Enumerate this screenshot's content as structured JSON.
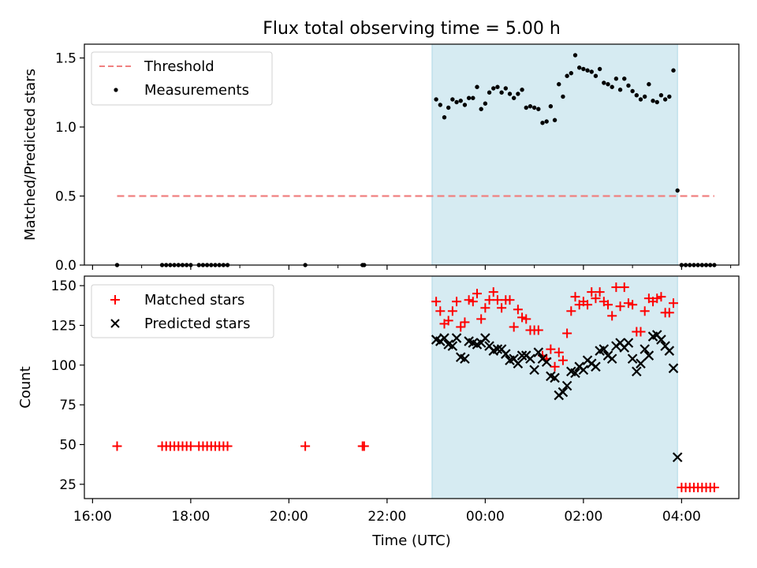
{
  "title": "Flux total observing time = 5.00 h",
  "colors": {
    "threshold": "#f08080",
    "measurements": "#000000",
    "matched": "#ff0000",
    "predicted": "#000000",
    "shade": "#add8e6"
  },
  "chart_data": [
    {
      "type": "scatter",
      "panel": "top",
      "ylabel": "Matched/Predicted stars",
      "xlabel": "",
      "xlim": [
        "15:50",
        "05:10"
      ],
      "ylim": [
        0,
        1.6
      ],
      "yticks": [
        0.0,
        0.5,
        1.0,
        1.5
      ],
      "ytick_labels": [
        "0.0",
        "0.5",
        "1.0",
        "1.5"
      ],
      "xticks": [
        "16:00",
        "18:00",
        "20:00",
        "22:00",
        "00:00",
        "02:00",
        "04:00"
      ],
      "shaded_span": [
        "22:55",
        "03:55"
      ],
      "legend": {
        "position": "top-left",
        "entries": [
          "Threshold",
          "Measurements"
        ]
      },
      "series": [
        {
          "name": "Threshold",
          "style": "dashed-line",
          "points": [
            [
              "16:30",
              0.5
            ],
            [
              "04:40",
              0.5
            ]
          ]
        },
        {
          "name": "Measurements",
          "style": "dot",
          "points": [
            [
              "16:30",
              0
            ],
            [
              "17:25",
              0
            ],
            [
              "17:30",
              0
            ],
            [
              "17:35",
              0
            ],
            [
              "17:40",
              0
            ],
            [
              "17:45",
              0
            ],
            [
              "17:50",
              0
            ],
            [
              "17:55",
              0
            ],
            [
              "18:00",
              0
            ],
            [
              "18:10",
              0
            ],
            [
              "18:15",
              0
            ],
            [
              "18:20",
              0
            ],
            [
              "18:25",
              0
            ],
            [
              "18:30",
              0
            ],
            [
              "18:35",
              0
            ],
            [
              "18:40",
              0
            ],
            [
              "18:45",
              0
            ],
            [
              "20:20",
              0
            ],
            [
              "21:30",
              0
            ],
            [
              "21:32",
              0
            ],
            [
              "23:00",
              1.2
            ],
            [
              "23:05",
              1.16
            ],
            [
              "23:10",
              1.07
            ],
            [
              "23:15",
              1.14
            ],
            [
              "23:20",
              1.2
            ],
            [
              "23:25",
              1.18
            ],
            [
              "23:30",
              1.19
            ],
            [
              "23:35",
              1.16
            ],
            [
              "23:40",
              1.21
            ],
            [
              "23:45",
              1.21
            ],
            [
              "23:50",
              1.29
            ],
            [
              "23:55",
              1.13
            ],
            [
              "00:00",
              1.17
            ],
            [
              "00:05",
              1.25
            ],
            [
              "00:10",
              1.28
            ],
            [
              "00:15",
              1.29
            ],
            [
              "00:20",
              1.25
            ],
            [
              "00:25",
              1.28
            ],
            [
              "00:30",
              1.24
            ],
            [
              "00:35",
              1.21
            ],
            [
              "00:40",
              1.24
            ],
            [
              "00:45",
              1.27
            ],
            [
              "00:50",
              1.14
            ],
            [
              "00:55",
              1.15
            ],
            [
              "01:00",
              1.14
            ],
            [
              "01:05",
              1.13
            ],
            [
              "01:10",
              1.03
            ],
            [
              "01:15",
              1.04
            ],
            [
              "01:20",
              1.15
            ],
            [
              "01:25",
              1.05
            ],
            [
              "01:30",
              1.31
            ],
            [
              "01:35",
              1.22
            ],
            [
              "01:40",
              1.37
            ],
            [
              "01:45",
              1.39
            ],
            [
              "01:50",
              1.52
            ],
            [
              "01:55",
              1.43
            ],
            [
              "02:00",
              1.42
            ],
            [
              "02:05",
              1.41
            ],
            [
              "02:10",
              1.4
            ],
            [
              "02:15",
              1.37
            ],
            [
              "02:20",
              1.42
            ],
            [
              "02:25",
              1.32
            ],
            [
              "02:30",
              1.31
            ],
            [
              "02:35",
              1.29
            ],
            [
              "02:40",
              1.35
            ],
            [
              "02:45",
              1.27
            ],
            [
              "02:50",
              1.35
            ],
            [
              "02:55",
              1.3
            ],
            [
              "03:00",
              1.26
            ],
            [
              "03:05",
              1.23
            ],
            [
              "03:10",
              1.2
            ],
            [
              "03:15",
              1.22
            ],
            [
              "03:20",
              1.31
            ],
            [
              "03:25",
              1.19
            ],
            [
              "03:30",
              1.18
            ],
            [
              "03:35",
              1.23
            ],
            [
              "03:40",
              1.2
            ],
            [
              "03:45",
              1.22
            ],
            [
              "03:50",
              1.41
            ],
            [
              "03:55",
              0.54
            ],
            [
              "04:00",
              0
            ],
            [
              "04:05",
              0
            ],
            [
              "04:10",
              0
            ],
            [
              "04:15",
              0
            ],
            [
              "04:20",
              0
            ],
            [
              "04:25",
              0
            ],
            [
              "04:30",
              0
            ],
            [
              "04:35",
              0
            ],
            [
              "04:40",
              0
            ]
          ]
        }
      ]
    },
    {
      "type": "scatter",
      "panel": "bottom",
      "ylabel": "Count",
      "xlabel": "Time (UTC)",
      "xlim": [
        "15:50",
        "05:10"
      ],
      "ylim": [
        16,
        156
      ],
      "yticks": [
        25,
        50,
        75,
        100,
        125,
        150
      ],
      "ytick_labels": [
        "25",
        "50",
        "75",
        "100",
        "125",
        "150"
      ],
      "xticks": [
        "16:00",
        "18:00",
        "20:00",
        "22:00",
        "00:00",
        "02:00",
        "04:00"
      ],
      "shaded_span": [
        "22:55",
        "03:55"
      ],
      "legend": {
        "position": "top-left",
        "entries": [
          "Matched stars",
          "Predicted stars"
        ]
      },
      "series": [
        {
          "name": "Matched stars",
          "marker": "plus",
          "points": [
            [
              "16:30",
              49
            ],
            [
              "17:25",
              49
            ],
            [
              "17:30",
              49
            ],
            [
              "17:35",
              49
            ],
            [
              "17:40",
              49
            ],
            [
              "17:45",
              49
            ],
            [
              "17:50",
              49
            ],
            [
              "17:55",
              49
            ],
            [
              "18:00",
              49
            ],
            [
              "18:10",
              49
            ],
            [
              "18:15",
              49
            ],
            [
              "18:20",
              49
            ],
            [
              "18:25",
              49
            ],
            [
              "18:30",
              49
            ],
            [
              "18:35",
              49
            ],
            [
              "18:40",
              49
            ],
            [
              "18:45",
              49
            ],
            [
              "20:20",
              49
            ],
            [
              "21:30",
              49
            ],
            [
              "21:32",
              49
            ],
            [
              "23:00",
              140
            ],
            [
              "23:05",
              134
            ],
            [
              "23:10",
              126
            ],
            [
              "23:15",
              128
            ],
            [
              "23:20",
              134
            ],
            [
              "23:25",
              140
            ],
            [
              "23:30",
              124
            ],
            [
              "23:35",
              127
            ],
            [
              "23:40",
              141
            ],
            [
              "23:45",
              140
            ],
            [
              "23:50",
              145
            ],
            [
              "23:55",
              129
            ],
            [
              "00:00",
              136
            ],
            [
              "00:05",
              141
            ],
            [
              "00:10",
              146
            ],
            [
              "00:15",
              141
            ],
            [
              "00:20",
              136
            ],
            [
              "00:25",
              141
            ],
            [
              "00:30",
              141
            ],
            [
              "00:35",
              124
            ],
            [
              "00:40",
              135
            ],
            [
              "00:45",
              130
            ],
            [
              "00:50",
              129
            ],
            [
              "00:55",
              122
            ],
            [
              "01:00",
              122
            ],
            [
              "01:05",
              122
            ],
            [
              "01:10",
              106
            ],
            [
              "01:15",
              104
            ],
            [
              "01:20",
              110
            ],
            [
              "01:25",
              99
            ],
            [
              "01:30",
              108
            ],
            [
              "01:35",
              103
            ],
            [
              "01:40",
              120
            ],
            [
              "01:45",
              134
            ],
            [
              "01:50",
              143
            ],
            [
              "01:55",
              138
            ],
            [
              "02:00",
              140
            ],
            [
              "02:05",
              138
            ],
            [
              "02:10",
              146
            ],
            [
              "02:15",
              142
            ],
            [
              "02:20",
              146
            ],
            [
              "02:25",
              140
            ],
            [
              "02:30",
              138
            ],
            [
              "02:35",
              131
            ],
            [
              "02:40",
              149
            ],
            [
              "02:45",
              137
            ],
            [
              "02:50",
              149
            ],
            [
              "02:55",
              139
            ],
            [
              "03:00",
              138
            ],
            [
              "03:05",
              121
            ],
            [
              "03:10",
              121
            ],
            [
              "03:15",
              134
            ],
            [
              "03:20",
              142
            ],
            [
              "03:25",
              140
            ],
            [
              "03:30",
              142
            ],
            [
              "03:35",
              143
            ],
            [
              "03:40",
              133
            ],
            [
              "03:45",
              133
            ],
            [
              "03:50",
              139
            ],
            [
              "04:00",
              23
            ],
            [
              "04:05",
              23
            ],
            [
              "04:10",
              23
            ],
            [
              "04:15",
              23
            ],
            [
              "04:20",
              23
            ],
            [
              "04:25",
              23
            ],
            [
              "04:30",
              23
            ],
            [
              "04:35",
              23
            ],
            [
              "04:40",
              23
            ]
          ]
        },
        {
          "name": "Predicted stars",
          "marker": "cross",
          "points": [
            [
              "23:00",
              116
            ],
            [
              "23:05",
              115
            ],
            [
              "23:10",
              117
            ],
            [
              "23:15",
              113
            ],
            [
              "23:20",
              112
            ],
            [
              "23:25",
              117
            ],
            [
              "23:30",
              105
            ],
            [
              "23:35",
              104
            ],
            [
              "23:40",
              115
            ],
            [
              "23:45",
              114
            ],
            [
              "23:50",
              113
            ],
            [
              "23:55",
              114
            ],
            [
              "00:00",
              117
            ],
            [
              "00:05",
              112
            ],
            [
              "00:10",
              109
            ],
            [
              "00:15",
              110
            ],
            [
              "00:20",
              110
            ],
            [
              "00:25",
              107
            ],
            [
              "00:30",
              103
            ],
            [
              "00:35",
              104
            ],
            [
              "00:40",
              101
            ],
            [
              "00:45",
              106
            ],
            [
              "00:50",
              106
            ],
            [
              "00:55",
              104
            ],
            [
              "01:00",
              97
            ],
            [
              "01:05",
              108
            ],
            [
              "01:10",
              104
            ],
            [
              "01:15",
              102
            ],
            [
              "01:20",
              93
            ],
            [
              "01:25",
              92
            ],
            [
              "01:30",
              81
            ],
            [
              "01:35",
              83
            ],
            [
              "01:40",
              87
            ],
            [
              "01:45",
              96
            ],
            [
              "01:50",
              95
            ],
            [
              "01:55",
              99
            ],
            [
              "02:00",
              97
            ],
            [
              "02:05",
              103
            ],
            [
              "02:10",
              101
            ],
            [
              "02:15",
              99
            ],
            [
              "02:20",
              109
            ],
            [
              "02:25",
              110
            ],
            [
              "02:30",
              106
            ],
            [
              "02:35",
              104
            ],
            [
              "02:40",
              112
            ],
            [
              "02:45",
              114
            ],
            [
              "02:50",
              111
            ],
            [
              "02:55",
              114
            ],
            [
              "03:00",
              104
            ],
            [
              "03:05",
              96
            ],
            [
              "03:10",
              101
            ],
            [
              "03:15",
              110
            ],
            [
              "03:20",
              106
            ],
            [
              "03:25",
              118
            ],
            [
              "03:30",
              119
            ],
            [
              "03:35",
              116
            ],
            [
              "03:40",
              112
            ],
            [
              "03:45",
              109
            ],
            [
              "03:50",
              98
            ],
            [
              "03:55",
              42
            ]
          ]
        }
      ]
    }
  ]
}
